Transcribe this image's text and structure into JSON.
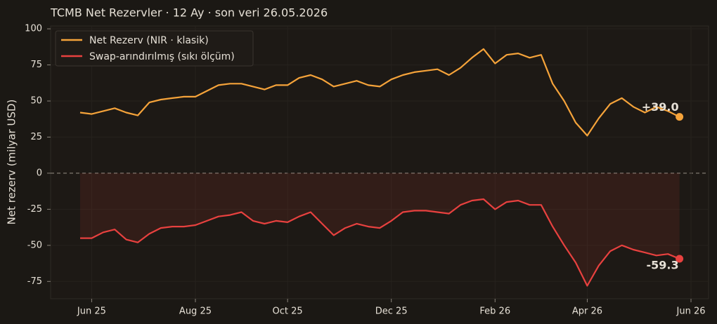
{
  "chart_data": {
    "type": "line",
    "title": "TCMB Net Rezervler · 12 Ay · son veri 26.05.2026",
    "ylabel": "Net rezerv (milyar USD)",
    "categories": [
      null,
      "Jun 25",
      null,
      null,
      null,
      null,
      null,
      null,
      null,
      null,
      "Aug 25",
      null,
      null,
      null,
      null,
      null,
      null,
      null,
      "Oct 25",
      null,
      null,
      null,
      null,
      null,
      null,
      null,
      null,
      "Dec 25",
      null,
      null,
      null,
      null,
      null,
      null,
      null,
      null,
      "Feb 26",
      null,
      null,
      null,
      null,
      null,
      null,
      null,
      "Apr 26",
      null,
      null,
      null,
      null,
      null,
      null,
      null,
      null,
      "Jun 26"
    ],
    "series": [
      {
        "name": "Net Rezerv (NIR · klasik)",
        "color": "#f5a33a",
        "values": [
          42,
          41,
          43,
          45,
          42,
          40,
          49,
          51,
          52,
          53,
          53,
          57,
          61,
          62,
          62,
          60,
          58,
          61,
          61,
          66,
          68,
          65,
          60,
          62,
          64,
          61,
          60,
          65,
          68,
          70,
          71,
          72,
          68,
          73,
          80,
          86,
          76,
          82,
          83,
          80,
          82,
          62,
          50,
          35,
          26,
          38,
          48,
          52,
          46,
          42,
          46,
          43,
          39.0,
          null
        ],
        "value_labels": [
          null,
          null,
          null,
          null,
          null,
          null,
          null,
          null,
          null,
          null,
          null,
          null,
          null,
          null,
          null,
          null,
          null,
          null,
          null,
          null,
          null,
          null,
          null,
          null,
          null,
          null,
          null,
          null,
          null,
          null,
          null,
          null,
          null,
          null,
          null,
          null,
          null,
          null,
          null,
          null,
          null,
          null,
          null,
          null,
          null,
          null,
          null,
          null,
          null,
          null,
          null,
          null,
          "+39.0",
          null
        ]
      },
      {
        "name": "Swap-arındırılmış (sıkı ölçüm)",
        "color": "#e8413f",
        "values": [
          -45,
          -45,
          -41,
          -39,
          -46,
          -48,
          -42,
          -38,
          -37,
          -37,
          -36,
          -33,
          -30,
          -29,
          -27,
          -33,
          -35,
          -33,
          -34,
          -30,
          -27,
          -35,
          -43,
          -38,
          -35,
          -37,
          -38,
          -33,
          -27,
          -26,
          -26,
          -27,
          -28,
          -22,
          -19,
          -18,
          -25,
          -20,
          -19,
          -22,
          -22,
          -37,
          -50,
          -62,
          -78,
          -64,
          -54,
          -50,
          -53,
          -55,
          -57,
          -56,
          -59.3,
          null
        ],
        "value_labels": [
          null,
          null,
          null,
          null,
          null,
          null,
          null,
          null,
          null,
          null,
          null,
          null,
          null,
          null,
          null,
          null,
          null,
          null,
          null,
          null,
          null,
          null,
          null,
          null,
          null,
          null,
          null,
          null,
          null,
          null,
          null,
          null,
          null,
          null,
          null,
          null,
          null,
          null,
          null,
          null,
          null,
          null,
          null,
          null,
          null,
          null,
          null,
          null,
          null,
          null,
          null,
          null,
          "-59.3",
          null
        ]
      }
    ],
    "ylim": [
      -87,
      102
    ],
    "yticks": [
      -75,
      -50,
      -25,
      0,
      25,
      50,
      75,
      100
    ],
    "grid": true,
    "legend": "upper left"
  }
}
